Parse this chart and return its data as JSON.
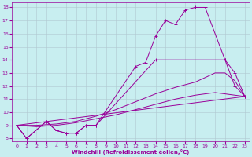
{
  "xlabel": "Windchill (Refroidissement éolien,°C)",
  "bg_color": "#c8eef0",
  "line_color": "#990099",
  "grid_color": "#b0c8d0",
  "xlim": [
    -0.5,
    23.5
  ],
  "ylim": [
    7.8,
    18.4
  ],
  "xticks": [
    0,
    1,
    2,
    3,
    4,
    5,
    6,
    7,
    8,
    9,
    10,
    11,
    12,
    13,
    14,
    15,
    16,
    17,
    18,
    19,
    20,
    21,
    22,
    23
  ],
  "yticks": [
    8,
    9,
    10,
    11,
    12,
    13,
    14,
    15,
    16,
    17,
    18
  ],
  "line1_x": [
    0,
    1,
    3,
    4,
    5,
    6,
    7,
    8,
    12,
    13,
    14,
    15,
    16,
    17,
    18,
    19,
    21,
    22,
    23
  ],
  "line1_y": [
    9.0,
    8.0,
    9.3,
    8.6,
    8.4,
    8.4,
    9.0,
    9.0,
    13.5,
    13.8,
    15.8,
    17.0,
    16.7,
    17.8,
    18.0,
    18.0,
    14.0,
    13.0,
    11.2
  ],
  "line2_x": [
    0,
    1,
    3,
    4,
    5,
    6,
    7,
    8,
    14,
    21,
    22,
    23
  ],
  "line2_y": [
    9.0,
    8.0,
    9.3,
    8.6,
    8.4,
    8.4,
    9.0,
    9.0,
    14.0,
    14.0,
    12.0,
    11.2
  ],
  "line3_x": [
    0,
    2,
    4,
    6,
    8,
    10,
    12,
    14,
    16,
    18,
    20,
    21,
    22,
    23
  ],
  "line3_y": [
    9.0,
    9.0,
    9.1,
    9.3,
    9.7,
    10.2,
    10.8,
    11.4,
    11.9,
    12.3,
    13.0,
    13.0,
    12.4,
    11.2
  ],
  "line4_x": [
    0,
    2,
    4,
    6,
    8,
    10,
    12,
    14,
    16,
    18,
    20,
    22,
    23
  ],
  "line4_y": [
    9.0,
    8.9,
    9.0,
    9.2,
    9.5,
    9.8,
    10.2,
    10.6,
    11.0,
    11.3,
    11.5,
    11.3,
    11.2
  ],
  "line5_x": [
    0,
    23
  ],
  "line5_y": [
    9.0,
    11.2
  ]
}
